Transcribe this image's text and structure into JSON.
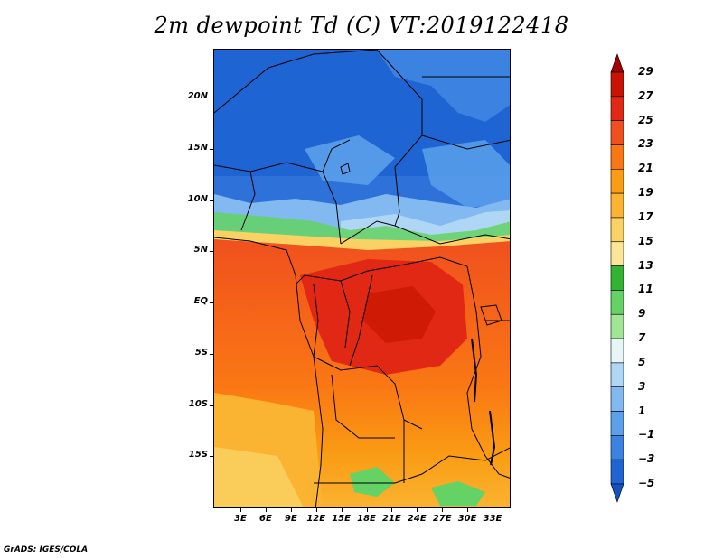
{
  "title": "2m dewpoint Td (C) VT:2019122418",
  "footer": "GrADS: IGES/COLA",
  "map": {
    "lat_ticks": [
      {
        "label": "20N",
        "lat": 20
      },
      {
        "label": "15N",
        "lat": 15
      },
      {
        "label": "10N",
        "lat": 10
      },
      {
        "label": "5N",
        "lat": 5
      },
      {
        "label": "EQ",
        "lat": 0
      },
      {
        "label": "5S",
        "lat": -5
      },
      {
        "label": "10S",
        "lat": -10
      },
      {
        "label": "15S",
        "lat": -15
      }
    ],
    "lon_ticks": [
      {
        "label": "3E",
        "lon": 3
      },
      {
        "label": "6E",
        "lon": 6
      },
      {
        "label": "9E",
        "lon": 9
      },
      {
        "label": "12E",
        "lon": 12
      },
      {
        "label": "15E",
        "lon": 15
      },
      {
        "label": "18E",
        "lon": 18
      },
      {
        "label": "21E",
        "lon": 21
      },
      {
        "label": "24E",
        "lon": 24
      },
      {
        "label": "27E",
        "lon": 27
      },
      {
        "label": "30E",
        "lon": 30
      },
      {
        "label": "33E",
        "lon": 33
      }
    ]
  },
  "legend": {
    "labels": [
      "29",
      "27",
      "25",
      "23",
      "21",
      "19",
      "17",
      "15",
      "13",
      "11",
      "9",
      "7",
      "5",
      "3",
      "1",
      "−1",
      "−3",
      "−5"
    ],
    "colors": [
      "#a00000",
      "#c81400",
      "#e12814",
      "#f0501e",
      "#fa7814",
      "#fa9c14",
      "#fab432",
      "#fad264",
      "#fae696",
      "#32b432",
      "#64d264",
      "#a0e696",
      "#e6f5f5",
      "#afd7f5",
      "#82b9f0",
      "#5aa0eb",
      "#3c82e1",
      "#1e64d2",
      "#1450be"
    ]
  }
}
